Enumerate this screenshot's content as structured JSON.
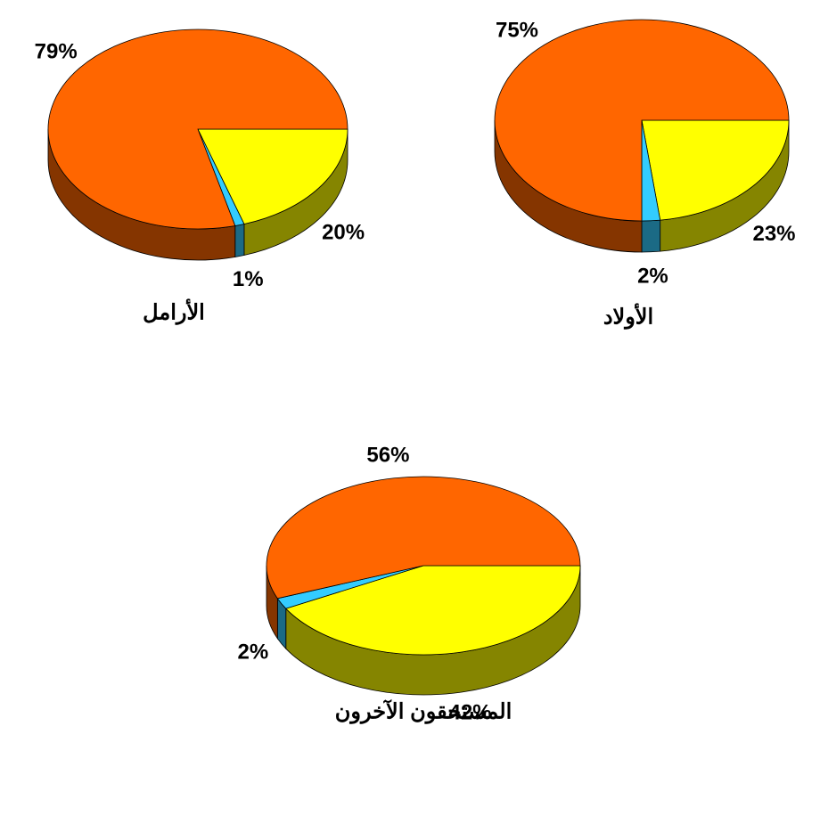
{
  "chart_data": [
    {
      "type": "pie",
      "title": "الأرامل",
      "values": [
        20,
        1,
        79
      ],
      "value_labels": [
        "20%",
        "1%",
        "79%"
      ],
      "colors": [
        "#ffff00",
        "#33ccff",
        "#ff6600"
      ]
    },
    {
      "type": "pie",
      "title": "الأولاد",
      "values": [
        23,
        2,
        75
      ],
      "value_labels": [
        "23%",
        "2%",
        "75%"
      ],
      "colors": [
        "#ffff00",
        "#33ccff",
        "#ff6600"
      ]
    },
    {
      "type": "pie",
      "title": "المستحقون الآخرون",
      "values": [
        42,
        2,
        56
      ],
      "value_labels": [
        "42%",
        "2%",
        "56%"
      ],
      "colors": [
        "#ffff00",
        "#33ccff",
        "#ff6600"
      ]
    }
  ]
}
